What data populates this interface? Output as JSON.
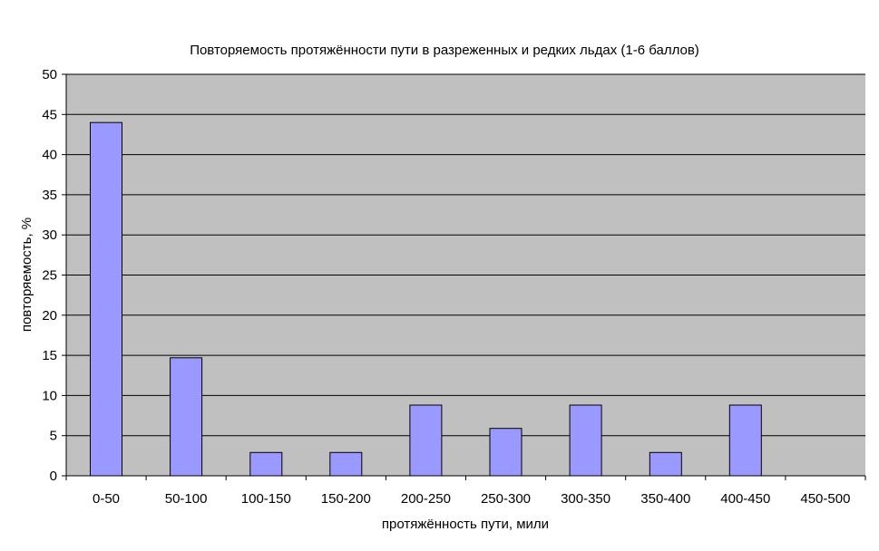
{
  "chart_data": {
    "type": "bar",
    "title": "Повторяемость протяжённости пути в разреженных и редких льдах (1-6 баллов)",
    "xlabel": "протяжённость пути, мили",
    "ylabel": "повторяемость, %",
    "categories": [
      "0-50",
      "50-100",
      "100-150",
      "150-200",
      "200-250",
      "250-300",
      "300-350",
      "350-400",
      "400-450",
      "450-500"
    ],
    "values": [
      44,
      14.7,
      2.9,
      2.9,
      8.8,
      5.9,
      8.8,
      2.9,
      8.8,
      0
    ],
    "ylim": [
      0,
      50
    ],
    "yticks": [
      0,
      5,
      10,
      15,
      20,
      25,
      30,
      35,
      40,
      45,
      50
    ],
    "grid": true,
    "legend": "none",
    "colors": {
      "plot_background": "#c0c0c0",
      "bar_fill": "#9999ff",
      "bar_stroke": "#000000",
      "gridline": "#000000"
    }
  }
}
